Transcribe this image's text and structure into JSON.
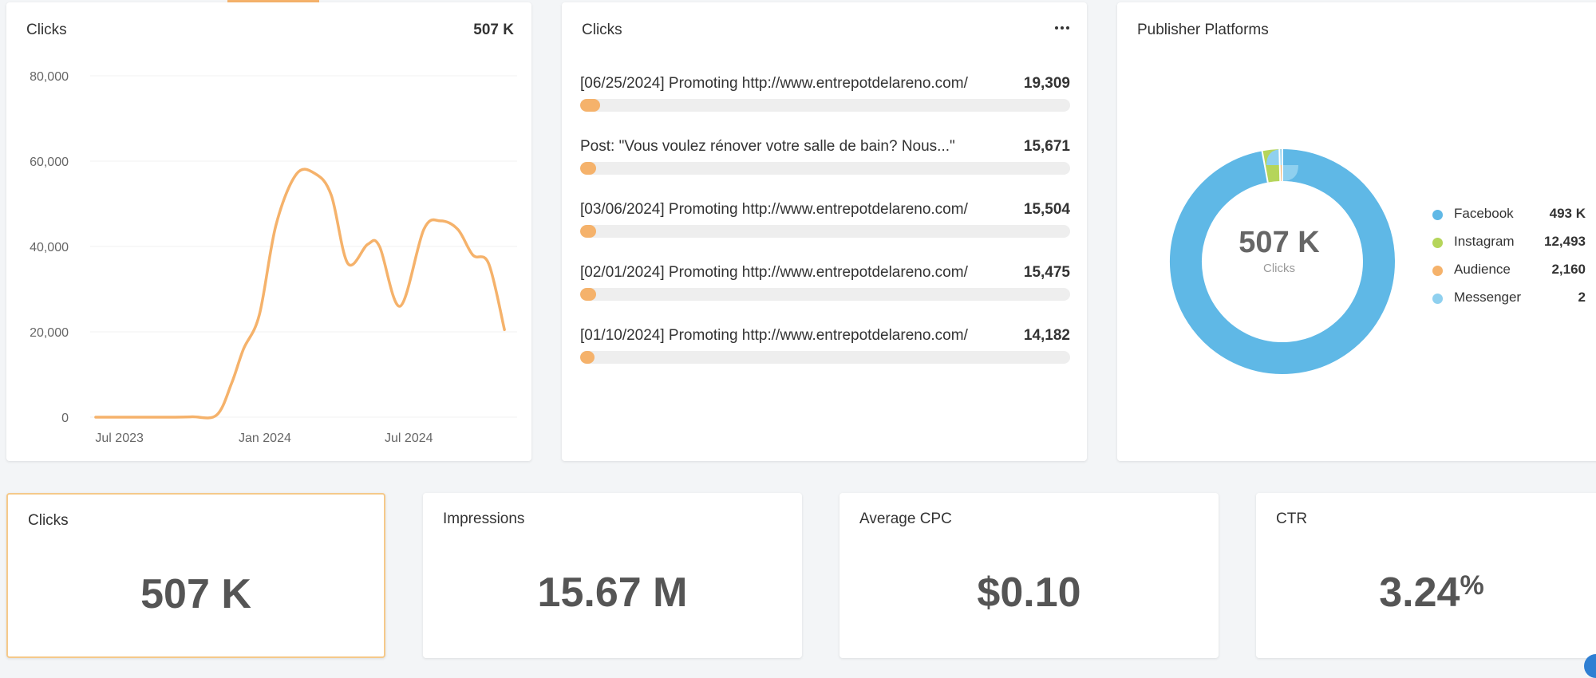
{
  "line_card": {
    "title": "Clicks",
    "total": "507 K"
  },
  "chart_data": {
    "type": "line",
    "title": "Clicks",
    "xlabel": "",
    "ylabel": "",
    "ylim": [
      0,
      80000
    ],
    "yticks": [
      "80,000",
      "60,000",
      "40,000",
      "20,000",
      "0"
    ],
    "xticks": [
      "Jul 2023",
      "Jan 2024",
      "Jul 2024"
    ],
    "grid": true,
    "series": [
      {
        "color": "#f5b26b",
        "x": [
          "2023-06-01",
          "2023-07-01",
          "2023-08-01",
          "2023-09-01",
          "2023-10-01",
          "2023-11-01",
          "2023-11-20",
          "2023-12-05",
          "2023-12-25",
          "2024-01-15",
          "2024-02-10",
          "2024-03-05",
          "2024-03-25",
          "2024-04-15",
          "2024-05-10",
          "2024-05-25",
          "2024-06-20",
          "2024-07-20",
          "2024-08-10",
          "2024-09-01",
          "2024-09-20",
          "2024-10-10",
          "2024-10-30"
        ],
        "values": [
          0,
          0,
          0,
          0,
          100,
          500,
          8000,
          16000,
          24000,
          45000,
          57000,
          57000,
          52000,
          36000,
          40500,
          40000,
          26000,
          44000,
          46000,
          44000,
          38000,
          36000,
          20500
        ]
      }
    ]
  },
  "posts_card": {
    "title": "Clicks",
    "max": 19309,
    "items": [
      {
        "label": "[06/25/2024] Promoting http://www.entrepotdelareno.com/",
        "value": "19,309",
        "num": 19309
      },
      {
        "label": "Post: \"Vous voulez rénover votre salle de bain? Nous...\"",
        "value": "15,671",
        "num": 15671
      },
      {
        "label": "[03/06/2024] Promoting http://www.entrepotdelareno.com/",
        "value": "15,504",
        "num": 15504
      },
      {
        "label": "[02/01/2024] Promoting http://www.entrepotdelareno.com/",
        "value": "15,475",
        "num": 15475
      },
      {
        "label": "[01/10/2024] Promoting http://www.entrepotdelareno.com/",
        "value": "14,182",
        "num": 14182
      }
    ]
  },
  "publisher_card": {
    "title": "Publisher Platforms",
    "center_value": "507 K",
    "center_label": "Clicks",
    "legend": [
      {
        "label": "Facebook",
        "value": "493 K",
        "num": 493000,
        "color": "#5fb8e6"
      },
      {
        "label": "Instagram",
        "value": "12,493",
        "num": 12493,
        "color": "#b5d55a"
      },
      {
        "label": "Audience",
        "value": "2,160",
        "num": 2160,
        "color": "#f5b26b"
      },
      {
        "label": "Messenger",
        "value": "2",
        "num": 2,
        "color": "#8fd0ef"
      }
    ]
  },
  "kpis": {
    "clicks": {
      "label": "Clicks",
      "value": "507 K"
    },
    "impressions": {
      "label": "Impressions",
      "value": "15.67 M"
    },
    "cpc": {
      "label": "Average CPC",
      "value": "$0.10"
    },
    "ctr": {
      "label": "CTR",
      "value": "3.24",
      "unit": "%"
    }
  }
}
